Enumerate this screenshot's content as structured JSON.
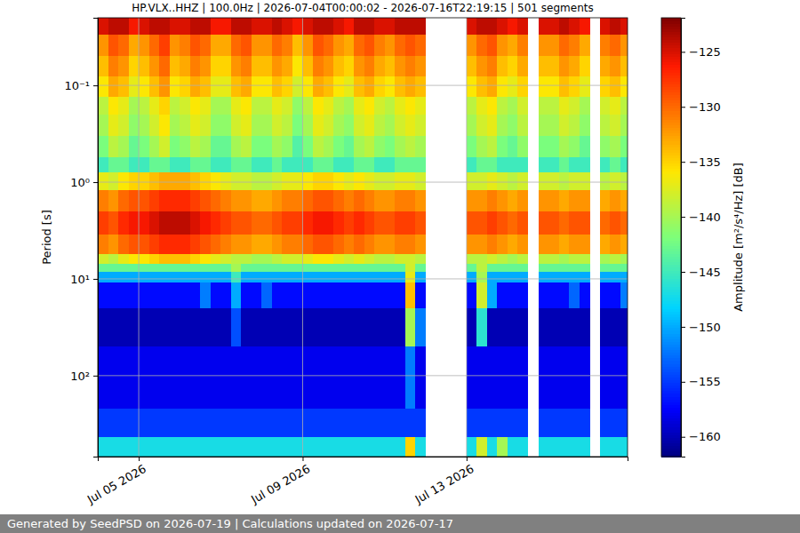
{
  "chart_data": {
    "type": "heatmap",
    "title": "HP.VLX..HHZ | 100.0Hz | 2026-07-04T00:00:02 - 2026-07-16T22:19:15 | 501 segments",
    "ylabel": "Period [s]",
    "footer": "Generated by SeedPSD on 2026-07-19 | Calculations updated on 2026-07-17",
    "log": "y",
    "grid": true,
    "x": [
      "2026-07-04T00:00",
      "2026-07-04T06:00",
      "2026-07-04T12:00",
      "2026-07-04T18:00",
      "2026-07-05T00:00",
      "2026-07-05T06:00",
      "2026-07-05T12:00",
      "2026-07-05T18:00",
      "2026-07-06T00:00",
      "2026-07-06T06:00",
      "2026-07-06T12:00",
      "2026-07-06T18:00",
      "2026-07-07T00:00",
      "2026-07-07T06:00",
      "2026-07-07T12:00",
      "2026-07-07T18:00",
      "2026-07-08T00:00",
      "2026-07-08T06:00",
      "2026-07-08T12:00",
      "2026-07-08T18:00",
      "2026-07-09T00:00",
      "2026-07-09T06:00",
      "2026-07-09T12:00",
      "2026-07-09T18:00",
      "2026-07-10T00:00",
      "2026-07-10T06:00",
      "2026-07-10T12:00",
      "2026-07-10T18:00",
      "2026-07-11T00:00",
      "2026-07-11T06:00",
      "2026-07-11T12:00",
      "2026-07-11T18:00",
      "2026-07-12T00:00",
      "2026-07-12T06:00",
      "2026-07-12T12:00",
      "2026-07-12T18:00",
      "2026-07-13T00:00",
      "2026-07-13T06:00",
      "2026-07-13T12:00",
      "2026-07-13T18:00",
      "2026-07-14T00:00",
      "2026-07-14T06:00",
      "2026-07-14T12:00",
      "2026-07-14T18:00",
      "2026-07-15T00:00",
      "2026-07-15T06:00",
      "2026-07-15T12:00",
      "2026-07-15T18:00",
      "2026-07-16T00:00",
      "2026-07-16T06:00",
      "2026-07-16T12:00",
      "2026-07-16T18:00"
    ],
    "xlim": [
      "2026-07-04T00:00:02",
      "2026-07-16T22:19:15"
    ],
    "xticks": [
      {
        "value": "2026-07-05",
        "label": "Jul 05 2026"
      },
      {
        "value": "2026-07-09",
        "label": "Jul 09 2026"
      },
      {
        "value": "2026-07-13",
        "label": "Jul 13 2026"
      }
    ],
    "y_edges": [
      0.02,
      0.03,
      0.05,
      0.08,
      0.13,
      0.2,
      0.33,
      0.55,
      0.8,
      1.2,
      2,
      3.5,
      5.5,
      7,
      8.5,
      11,
      20,
      50,
      220,
      430,
      687
    ],
    "ylim": [
      687,
      0.02
    ],
    "yticks": [
      {
        "value": 0.1,
        "label": "10⁻¹"
      },
      {
        "value": 1,
        "label": "10⁰"
      },
      {
        "value": 10,
        "label": "10¹"
      },
      {
        "value": 100,
        "label": "10²"
      }
    ],
    "values": [
      [
        -125,
        -124,
        -124,
        -126,
        -125,
        -124,
        -124,
        -125,
        -125,
        -124,
        -124,
        -126,
        -126,
        -124,
        -124,
        -125,
        -125,
        -124,
        -125,
        -126,
        -125,
        -124,
        -124,
        -125,
        -126,
        -124,
        -124,
        -125,
        -125,
        -124,
        -124,
        -124,
        null,
        null,
        null,
        null,
        -125,
        -124,
        -124,
        -125,
        -126,
        -125,
        null,
        -125,
        -125,
        -124,
        -125,
        -126,
        null,
        -125,
        -124,
        -125
      ],
      [
        -132,
        -129,
        -130,
        -133,
        -132,
        -130,
        -128,
        -132,
        -131,
        -129,
        -130,
        -133,
        -133,
        -130,
        -129,
        -132,
        -132,
        -130,
        -131,
        -134,
        -132,
        -129,
        -130,
        -132,
        -133,
        -130,
        -129,
        -131,
        -132,
        -130,
        -129,
        -130,
        null,
        null,
        null,
        null,
        -132,
        -130,
        -129,
        -132,
        -133,
        -131,
        null,
        -132,
        -132,
        -130,
        -131,
        -133,
        null,
        -131,
        -130,
        -132
      ],
      [
        -134,
        -131,
        -132,
        -135,
        -134,
        -132,
        -130,
        -134,
        -133,
        -131,
        -132,
        -135,
        -135,
        -132,
        -131,
        -134,
        -134,
        -132,
        -133,
        -136,
        -134,
        -131,
        -132,
        -134,
        -135,
        -132,
        -131,
        -133,
        -134,
        -132,
        -131,
        -132,
        null,
        null,
        null,
        null,
        -134,
        -132,
        -131,
        -134,
        -135,
        -133,
        null,
        -134,
        -134,
        -132,
        -133,
        -135,
        null,
        -133,
        -132,
        -134
      ],
      [
        -136,
        -133,
        -134,
        -137,
        -136,
        -134,
        -132,
        -136,
        -135,
        -133,
        -134,
        -137,
        -137,
        -134,
        -133,
        -136,
        -136,
        -134,
        -135,
        -138,
        -136,
        -133,
        -134,
        -136,
        -137,
        -134,
        -133,
        -135,
        -136,
        -134,
        -133,
        -134,
        null,
        null,
        null,
        null,
        -136,
        -134,
        -133,
        -136,
        -137,
        -135,
        null,
        -136,
        -136,
        -134,
        -135,
        -137,
        null,
        -135,
        -134,
        -136
      ],
      [
        -139,
        -136,
        -137,
        -140,
        -139,
        -137,
        -135,
        -139,
        -138,
        -136,
        -137,
        -140,
        -140,
        -137,
        -136,
        -139,
        -139,
        -137,
        -138,
        -141,
        -139,
        -136,
        -137,
        -139,
        -140,
        -137,
        -136,
        -138,
        -139,
        -137,
        -136,
        -137,
        null,
        null,
        null,
        null,
        -139,
        -137,
        -136,
        -139,
        -140,
        -138,
        null,
        -139,
        -139,
        -137,
        -138,
        -140,
        null,
        -138,
        -137,
        -139
      ],
      [
        -140,
        -137,
        -138,
        -141,
        -140,
        -138,
        -136,
        -140,
        -139,
        -137,
        -138,
        -141,
        -141,
        -138,
        -137,
        -140,
        -140,
        -138,
        -139,
        -142,
        -140,
        -137,
        -138,
        -140,
        -141,
        -138,
        -137,
        -139,
        -140,
        -138,
        -137,
        -138,
        null,
        null,
        null,
        null,
        -140,
        -138,
        -137,
        -140,
        -141,
        -139,
        null,
        -140,
        -140,
        -138,
        -139,
        -141,
        null,
        -139,
        -138,
        -140
      ],
      [
        -142,
        -139,
        -140,
        -143,
        -142,
        -140,
        -138,
        -142,
        -141,
        -139,
        -140,
        -143,
        -143,
        -140,
        -139,
        -142,
        -142,
        -140,
        -141,
        -144,
        -142,
        -139,
        -140,
        -142,
        -143,
        -140,
        -139,
        -141,
        -142,
        -140,
        -139,
        -140,
        null,
        null,
        null,
        null,
        -142,
        -140,
        -139,
        -142,
        -143,
        -141,
        null,
        -142,
        -142,
        -140,
        -141,
        -143,
        null,
        -141,
        -140,
        -142
      ],
      [
        -145,
        -143,
        -143,
        -145,
        -145,
        -143,
        -143,
        -145,
        -145,
        -143,
        -143,
        -145,
        -145,
        -143,
        -143,
        -145,
        -145,
        -143,
        -145,
        -145,
        -145,
        -143,
        -143,
        -145,
        -145,
        -143,
        -143,
        -145,
        -145,
        -143,
        -143,
        -143,
        null,
        null,
        null,
        null,
        -145,
        -143,
        -143,
        -145,
        -145,
        -145,
        null,
        -145,
        -145,
        -143,
        -145,
        -145,
        null,
        -145,
        -143,
        -145
      ],
      [
        -137,
        -138,
        -136,
        -135,
        -135,
        -134,
        -133,
        -133,
        -133,
        -134,
        -135,
        -136,
        -137,
        -138,
        -138,
        -139,
        -139,
        -138,
        -137,
        -137,
        -136,
        -135,
        -135,
        -136,
        -137,
        -136,
        -137,
        -138,
        -138,
        -137,
        -137,
        -138,
        null,
        null,
        null,
        null,
        -138,
        -138,
        -137,
        -138,
        -139,
        -138,
        null,
        -138,
        -138,
        -139,
        -138,
        -138,
        null,
        -139,
        -138,
        -139
      ],
      [
        -131,
        -132,
        -130,
        -129,
        -129,
        -128,
        -127,
        -127,
        -127,
        -128,
        -129,
        -130,
        -131,
        -132,
        -132,
        -133,
        -133,
        -132,
        -131,
        -131,
        -130,
        -129,
        -129,
        -130,
        -131,
        -130,
        -131,
        -132,
        -132,
        -131,
        -131,
        -132,
        null,
        null,
        null,
        null,
        -132,
        -132,
        -131,
        -132,
        -133,
        -132,
        null,
        -132,
        -132,
        -133,
        -132,
        -132,
        null,
        -133,
        -132,
        -133
      ],
      [
        -128,
        -129,
        -127,
        -126,
        -126,
        -125,
        -124,
        -124,
        -124,
        -125,
        -126,
        -127,
        -128,
        -129,
        -129,
        -130,
        -130,
        -129,
        -128,
        -128,
        -127,
        -126,
        -126,
        -127,
        -128,
        -127,
        -128,
        -129,
        -129,
        -128,
        -128,
        -129,
        null,
        null,
        null,
        null,
        -129,
        -129,
        -128,
        -129,
        -130,
        -129,
        null,
        -129,
        -129,
        -130,
        -129,
        -129,
        null,
        -130,
        -129,
        -130
      ],
      [
        -131,
        -132,
        -130,
        -129,
        -129,
        -128,
        -127,
        -127,
        -127,
        -128,
        -129,
        -130,
        -131,
        -132,
        -132,
        -133,
        -133,
        -132,
        -131,
        -131,
        -130,
        -129,
        -129,
        -130,
        -131,
        -130,
        -131,
        -132,
        -132,
        -131,
        -131,
        -132,
        null,
        null,
        null,
        null,
        -132,
        -132,
        -131,
        -132,
        -133,
        -132,
        null,
        -132,
        -132,
        -133,
        -132,
        -132,
        null,
        -133,
        -132,
        -133
      ],
      [
        -138,
        -139,
        -137,
        -136,
        -136,
        -135,
        -134,
        -134,
        -134,
        -135,
        -136,
        -137,
        -138,
        -139,
        -139,
        -140,
        -140,
        -139,
        -138,
        -138,
        -137,
        -136,
        -136,
        -137,
        -138,
        -137,
        -138,
        -139,
        -139,
        -138,
        -138,
        -139,
        null,
        null,
        null,
        null,
        -139,
        -139,
        -138,
        -139,
        -140,
        -139,
        null,
        -139,
        -139,
        -140,
        -139,
        -139,
        null,
        -140,
        -139,
        -140
      ],
      [
        -143,
        -143,
        -143,
        -143,
        -143,
        -143,
        -143,
        -143,
        -143,
        -143,
        -143,
        -143,
        -143,
        -140,
        -143,
        -143,
        -143,
        -143,
        -143,
        -143,
        -143,
        -143,
        -143,
        -143,
        -143,
        -143,
        -143,
        -143,
        -143,
        -143,
        -138,
        -143,
        null,
        null,
        null,
        null,
        -143,
        -139,
        -143,
        -143,
        -143,
        -143,
        null,
        -143,
        -143,
        -143,
        -143,
        -143,
        null,
        -143,
        -143,
        -143
      ],
      [
        -150,
        -150,
        -150,
        -150,
        -150,
        -150,
        -150,
        -150,
        -150,
        -150,
        -150,
        -150,
        -150,
        -145,
        -150,
        -150,
        -150,
        -150,
        -150,
        -150,
        -150,
        -150,
        -150,
        -150,
        -150,
        -150,
        -150,
        -150,
        -150,
        -150,
        -137,
        -150,
        null,
        null,
        null,
        null,
        -150,
        -140,
        -150,
        -150,
        -150,
        -150,
        null,
        -150,
        -150,
        -150,
        -150,
        -150,
        null,
        -150,
        -150,
        -150
      ],
      [
        -157,
        -157,
        -157,
        -157,
        -157,
        -157,
        -157,
        -157,
        -157,
        -157,
        -152,
        -157,
        -157,
        -150,
        -157,
        -157,
        -153,
        -157,
        -157,
        -157,
        -157,
        -157,
        -157,
        -157,
        -157,
        -157,
        -157,
        -157,
        -157,
        -157,
        -134,
        -157,
        null,
        null,
        null,
        null,
        -157,
        -138,
        -150,
        -157,
        -157,
        -157,
        null,
        -157,
        -157,
        -157,
        -153,
        -157,
        null,
        -157,
        -157,
        -152
      ],
      [
        -160,
        -160,
        -160,
        -160,
        -160,
        -160,
        -160,
        -160,
        -160,
        -160,
        -160,
        -160,
        -160,
        -154,
        -160,
        -160,
        -160,
        -160,
        -160,
        -160,
        -160,
        -160,
        -160,
        -160,
        -160,
        -160,
        -160,
        -160,
        -160,
        -160,
        -140,
        -152,
        null,
        null,
        null,
        null,
        -160,
        -146,
        -160,
        -160,
        -160,
        -160,
        null,
        -160,
        -160,
        -160,
        -160,
        -160,
        null,
        -160,
        -160,
        -160
      ],
      [
        -158,
        -158,
        -158,
        -158,
        -158,
        -158,
        -158,
        -158,
        -158,
        -158,
        -158,
        -158,
        -158,
        -158,
        -158,
        -158,
        -158,
        -158,
        -158,
        -158,
        -158,
        -158,
        -158,
        -158,
        -158,
        -158,
        -158,
        -158,
        -158,
        -158,
        -152,
        -158,
        null,
        null,
        null,
        null,
        -158,
        -158,
        -158,
        -158,
        -158,
        -158,
        null,
        -158,
        -158,
        -158,
        -158,
        -158,
        null,
        -158,
        -158,
        -158
      ],
      [
        -155,
        -155,
        -155,
        -155,
        -155,
        -155,
        -155,
        -155,
        -155,
        -155,
        -155,
        -155,
        -155,
        -155,
        -155,
        -155,
        -155,
        -155,
        -155,
        -155,
        -155,
        -155,
        -155,
        -155,
        -155,
        -155,
        -155,
        -155,
        -155,
        -155,
        -155,
        -155,
        null,
        null,
        null,
        null,
        -155,
        -155,
        -155,
        -155,
        -155,
        -155,
        null,
        -155,
        -155,
        -155,
        -155,
        -155,
        null,
        -155,
        -155,
        -155
      ],
      [
        -147,
        -147,
        -147,
        -147,
        -147,
        -147,
        -147,
        -147,
        -147,
        -147,
        -147,
        -147,
        -147,
        -147,
        -147,
        -147,
        -147,
        -147,
        -147,
        -147,
        -147,
        -147,
        -147,
        -147,
        -147,
        -147,
        -147,
        -147,
        -147,
        -147,
        -135,
        -147,
        null,
        null,
        null,
        null,
        -147,
        -138,
        -147,
        -140,
        -147,
        -147,
        null,
        -147,
        -147,
        -147,
        -147,
        -147,
        null,
        -147,
        -147,
        -147
      ]
    ],
    "colorbar": {
      "range": [
        -161.8,
        -121.9
      ],
      "ticks": [
        {
          "value": -125,
          "label": "−125"
        },
        {
          "value": -130,
          "label": "−130"
        },
        {
          "value": -135,
          "label": "−135"
        },
        {
          "value": -140,
          "label": "−140"
        },
        {
          "value": -145,
          "label": "−145"
        },
        {
          "value": -150,
          "label": "−150"
        },
        {
          "value": -155,
          "label": "−155"
        },
        {
          "value": -160,
          "label": "−160"
        }
      ],
      "label": "Amplitude [m²/s⁴/Hz] [dB]"
    }
  }
}
